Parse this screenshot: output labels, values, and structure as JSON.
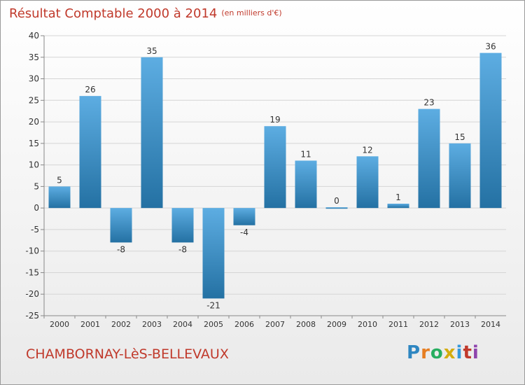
{
  "title": "Résultat Comptable 2000 à 2014",
  "subtitle": "(en milliers d'€)",
  "commune": "CHAMBORNAY-LèS-BELLEVAUX",
  "logo": {
    "letters": [
      "P",
      "r",
      "o",
      "x",
      "i",
      "t",
      "i"
    ],
    "colors": [
      "#2e86c1",
      "#e67e22",
      "#27ae60",
      "#d4ac0d",
      "#3498db",
      "#c0392b",
      "#8e44ad"
    ]
  },
  "colors": {
    "bar_light": "#5dade2",
    "bar_dark": "#2471a3",
    "title": "#c0392b"
  },
  "chart_data": {
    "type": "bar",
    "categories": [
      "2000",
      "2001",
      "2002",
      "2003",
      "2004",
      "2005",
      "2006",
      "2007",
      "2008",
      "2009",
      "2010",
      "2011",
      "2012",
      "2013",
      "2014"
    ],
    "values": [
      5,
      26,
      -8,
      35,
      -8,
      -21,
      -4,
      19,
      11,
      0,
      12,
      1,
      23,
      15,
      36
    ],
    "ylim": [
      -25,
      40
    ],
    "yticks": [
      -25,
      -20,
      -15,
      -10,
      -5,
      0,
      5,
      10,
      15,
      20,
      25,
      30,
      35,
      40
    ],
    "grid": true,
    "legend": "none"
  }
}
